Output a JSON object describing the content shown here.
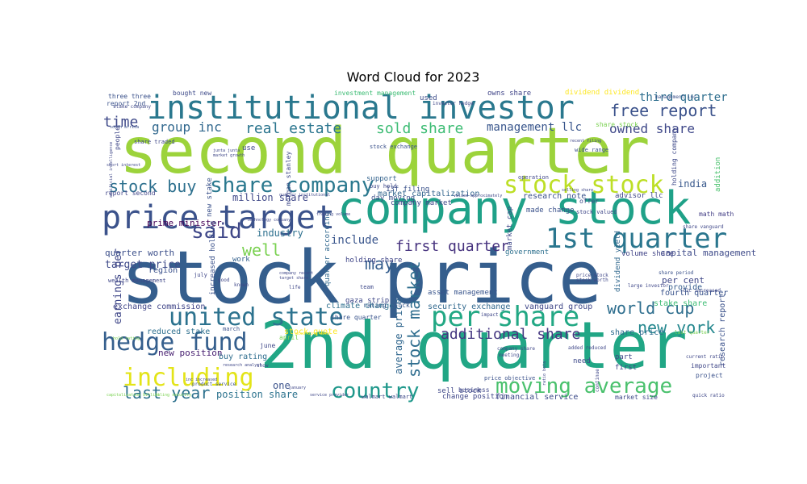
{
  "chart_data": {
    "type": "wordcloud",
    "title": "Word Cloud for 2023",
    "colormap": "viridis",
    "words": [
      {
        "text": "second quarter",
        "color": "#9cd33b"
      },
      {
        "text": "stock price",
        "color": "#355e8d"
      },
      {
        "text": "2nd quarter",
        "color": "#21a685"
      },
      {
        "text": "company stock",
        "color": "#1fa188"
      },
      {
        "text": "institutional investor",
        "color": "#2a788e"
      },
      {
        "text": "price target",
        "color": "#3b528b"
      },
      {
        "text": "1st quarter",
        "color": "#2a768e"
      },
      {
        "text": "per share",
        "color": "#22a884"
      },
      {
        "text": "united state",
        "color": "#2c728e"
      },
      {
        "text": "hedge fund",
        "color": "#355f8d"
      },
      {
        "text": "including",
        "color": "#e3e418"
      },
      {
        "text": "stock stock",
        "color": "#bddf26"
      },
      {
        "text": "share company",
        "color": "#2a788e"
      },
      {
        "text": "moving average",
        "color": "#4ac16d"
      },
      {
        "text": "country",
        "color": "#1f988b"
      },
      {
        "text": "said",
        "color": "#3f4788"
      },
      {
        "text": "stock buy",
        "color": "#2d708e"
      },
      {
        "text": "new york",
        "color": "#24878e"
      },
      {
        "text": "free report",
        "color": "#3b528b"
      },
      {
        "text": "world cup",
        "color": "#2e6e8e"
      },
      {
        "text": "stock market",
        "color": "#2e6d8e"
      },
      {
        "text": "last year",
        "color": "#2d718e"
      },
      {
        "text": "additional share",
        "color": "#453781"
      },
      {
        "text": "real estate",
        "color": "#2b758e"
      },
      {
        "text": "sold share",
        "color": "#3dbc74"
      },
      {
        "text": "first quarter",
        "color": "#46327e"
      },
      {
        "text": "well",
        "color": "#7ad151"
      },
      {
        "text": "may",
        "color": "#355e8d"
      },
      {
        "text": "owned share",
        "color": "#3f4889"
      },
      {
        "text": "time",
        "color": "#3e4989"
      },
      {
        "text": "group inc",
        "color": "#31688e"
      },
      {
        "text": "management llc",
        "color": "#39568c"
      },
      {
        "text": "third quarter",
        "color": "#2e6e8e"
      },
      {
        "text": "include",
        "color": "#39558c"
      },
      {
        "text": "million share",
        "color": "#3f4788"
      },
      {
        "text": "industry",
        "color": "#2d708e"
      },
      {
        "text": "target price",
        "color": "#3e4a89"
      },
      {
        "text": "earnings per",
        "color": "#3f4788"
      },
      {
        "text": "position share",
        "color": "#2c738e"
      },
      {
        "text": "average price",
        "color": "#31678e"
      },
      {
        "text": "one",
        "color": "#3b528b"
      },
      {
        "text": "india",
        "color": "#38588c"
      },
      {
        "text": "prime minister",
        "color": "#440154"
      },
      {
        "text": "stake share",
        "color": "#3dbc74"
      },
      {
        "text": "research report",
        "color": "#3b528b"
      },
      {
        "text": "per cent",
        "color": "#3f4788"
      },
      {
        "text": "capital management",
        "color": "#3e4a89"
      },
      {
        "text": "quarter worth",
        "color": "#3c4f8a"
      },
      {
        "text": "research note",
        "color": "#3b528b"
      },
      {
        "text": "market capitalization",
        "color": "#32658e"
      },
      {
        "text": "vanguard group",
        "color": "#3f4788"
      },
      {
        "text": "security exchange",
        "color": "#31688e"
      },
      {
        "text": "holding share",
        "color": "#404688"
      },
      {
        "text": "climate change",
        "color": "#2e6f8e"
      },
      {
        "text": "stock quote",
        "color": "#fde725"
      },
      {
        "text": "new position",
        "color": "#482071"
      },
      {
        "text": "buy rating",
        "color": "#2e6d8e"
      },
      {
        "text": "reduced stake",
        "color": "#2e6f8e"
      },
      {
        "text": "exchange commission",
        "color": "#404588"
      },
      {
        "text": "region",
        "color": "#3b518b"
      },
      {
        "text": "work",
        "color": "#34618d"
      },
      {
        "text": "share price",
        "color": "#2f6c8e"
      },
      {
        "text": "fourth quarter",
        "color": "#3a548c"
      },
      {
        "text": "provide",
        "color": "#365d8d"
      },
      {
        "text": "financial service",
        "color": "#3e4c8a"
      },
      {
        "text": "sell stock",
        "color": "#3f4889"
      },
      {
        "text": "change position",
        "color": "#3f4788"
      },
      {
        "text": "day moving",
        "color": "#3c4f8a"
      },
      {
        "text": "13f filing",
        "color": "#3b528b"
      },
      {
        "text": "company market",
        "color": "#3f4788"
      },
      {
        "text": "support",
        "color": "#33628d"
      },
      {
        "text": "used",
        "color": "#3d4d8a"
      },
      {
        "text": "owns share",
        "color": "#404588"
      },
      {
        "text": "dividend dividend",
        "color": "#fde725"
      },
      {
        "text": "advisor llc",
        "color": "#3f4788"
      },
      {
        "text": "volume share",
        "color": "#414487"
      },
      {
        "text": "math math",
        "color": "#433e85"
      },
      {
        "text": "addition",
        "color": "#4ac16d"
      },
      {
        "text": "holding company",
        "color": "#3e4989"
      },
      {
        "text": "new stake",
        "color": "#3b528b"
      },
      {
        "text": "morgan stanley",
        "color": "#3e4989"
      },
      {
        "text": "quarter according",
        "color": "#31688e"
      },
      {
        "text": "increased holding",
        "color": "#3b528b"
      },
      {
        "text": "gaza strip",
        "color": "#3f4889"
      },
      {
        "text": "rating stock",
        "color": "#38598c"
      },
      {
        "text": "share quarter",
        "color": "#3a548c"
      },
      {
        "text": "asset management",
        "color": "#39558c"
      },
      {
        "text": "government",
        "color": "#2d708e"
      },
      {
        "text": "made change",
        "color": "#3b528b"
      },
      {
        "text": "dividend yield",
        "color": "#31688e"
      },
      {
        "text": "market cap",
        "color": "#3f4788"
      },
      {
        "text": "need",
        "color": "#3e4989"
      },
      {
        "text": "first",
        "color": "#3f4788"
      },
      {
        "text": "part",
        "color": "#404688"
      },
      {
        "text": "important",
        "color": "#3f4788"
      },
      {
        "text": "project",
        "color": "#3b528b"
      },
      {
        "text": "market size",
        "color": "#3e4989"
      },
      {
        "text": "three three",
        "color": "#3b528b"
      },
      {
        "text": "report 2nd",
        "color": "#3b528b"
      },
      {
        "text": "bought new",
        "color": "#3e4a89"
      },
      {
        "text": "investment management",
        "color": "#3dbc74"
      },
      {
        "text": "business",
        "color": "#3f4788"
      },
      {
        "text": "offer",
        "color": "#3e4989"
      },
      {
        "text": "report second",
        "color": "#404588"
      },
      {
        "text": "buy hold",
        "color": "#3f4788"
      },
      {
        "text": "stock valued",
        "color": "#3f4788"
      },
      {
        "text": "use",
        "color": "#3f4788"
      },
      {
        "text": "june",
        "color": "#3f4788"
      },
      {
        "text": "april",
        "color": "#7ad151"
      },
      {
        "text": "march",
        "color": "#3b528b"
      },
      {
        "text": "july",
        "color": "#3f4788"
      },
      {
        "text": "team",
        "color": "#3e4989"
      },
      {
        "text": "share traded",
        "color": "#3f4788"
      },
      {
        "text": "people",
        "color": "#3f4788"
      },
      {
        "text": "share stock",
        "color": "#7ad151"
      },
      {
        "text": "wealth management",
        "color": "#3f4788"
      },
      {
        "text": "wide range",
        "color": "#3b528b"
      },
      {
        "text": "operation",
        "color": "#3f4788"
      },
      {
        "text": "walmart walmart",
        "color": "#3e4989"
      },
      {
        "text": "price objective",
        "color": "#3b528b"
      },
      {
        "text": "product service",
        "color": "#3b528b"
      },
      {
        "text": "good",
        "color": "#3f4788"
      },
      {
        "text": "known",
        "color": "#3f4788"
      },
      {
        "text": "life",
        "color": "#3f4788"
      },
      {
        "text": "show",
        "color": "#3f4788"
      },
      {
        "text": "meeting",
        "color": "#3e4989"
      },
      {
        "text": "impact",
        "color": "#3f4788"
      },
      {
        "text": "stock exchange",
        "color": "#3b528b"
      },
      {
        "text": "company share",
        "color": "#3f4788"
      },
      {
        "text": "added reduced",
        "color": "#3f4788"
      },
      {
        "text": "current ratio",
        "color": "#3f4788"
      },
      {
        "text": "large investor",
        "color": "#3f4788"
      },
      {
        "text": "last quarter",
        "color": "#7ad151"
      },
      {
        "text": "price stock",
        "color": "#3f4788"
      },
      {
        "text": "stock worth",
        "color": "#3f4788"
      },
      {
        "text": "quick ratio",
        "color": "#3f4788"
      },
      {
        "text": "continue",
        "color": "#3f4788"
      },
      {
        "text": "llc increased",
        "color": "#3f4788"
      },
      {
        "text": "share vanguard",
        "color": "#3f4788"
      },
      {
        "text": "management inc",
        "color": "#3b528b"
      },
      {
        "text": "stake company",
        "color": "#3f4788"
      },
      {
        "text": "investor hedge",
        "color": "#3f4788"
      },
      {
        "text": "capitalization billion",
        "color": "#7ad151"
      },
      {
        "text": "filing security",
        "color": "#7ad151"
      },
      {
        "text": "service provider",
        "color": "#3f4788"
      },
      {
        "text": "short interest",
        "color": "#3f4788"
      },
      {
        "text": "south africa",
        "color": "#3b528b"
      },
      {
        "text": "artificial intelligence",
        "color": "#3f4788"
      },
      {
        "text": "hold rating",
        "color": "#7ad151"
      },
      {
        "text": "research analyst",
        "color": "#3f4788"
      },
      {
        "text": "according data",
        "color": "#fde725"
      },
      {
        "text": "trading volume",
        "color": "#3f4788"
      },
      {
        "text": "technology company",
        "color": "#3f4788"
      },
      {
        "text": "valued approximately",
        "color": "#3f4788"
      },
      {
        "text": "selling share",
        "color": "#3f4788"
      },
      {
        "text": "junta junta",
        "color": "#3f4788"
      },
      {
        "text": "market growth",
        "color": "#3f4788"
      },
      {
        "text": "quarter institutional",
        "color": "#3f4788"
      },
      {
        "text": "company recent",
        "color": "#3f4788"
      },
      {
        "text": "target share",
        "color": "#3f4788"
      },
      {
        "text": "ratio beta",
        "color": "#3f4788"
      },
      {
        "text": "inc increased",
        "color": "#3f4788"
      },
      {
        "text": "share period",
        "color": "#3b528b"
      },
      {
        "text": "recent filing",
        "color": "#3f4788"
      },
      {
        "text": "january",
        "color": "#3f4788"
      }
    ]
  }
}
